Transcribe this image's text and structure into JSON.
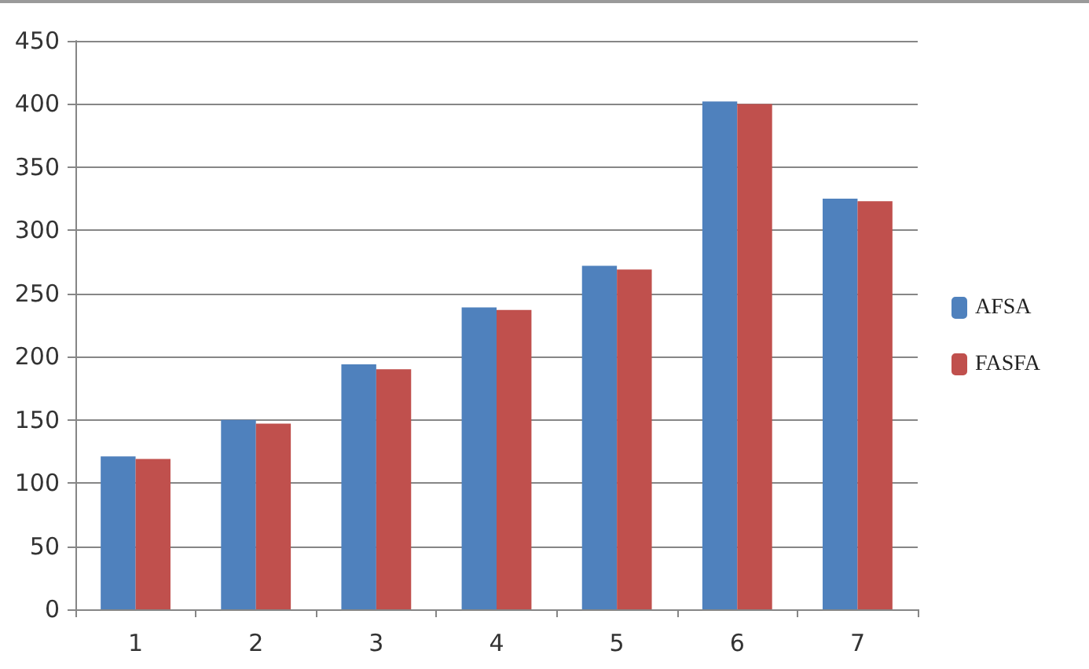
{
  "chart_data": {
    "type": "bar",
    "categories": [
      "1",
      "2",
      "3",
      "4",
      "5",
      "6",
      "7"
    ],
    "series": [
      {
        "name": "AFSA",
        "color": "#4f81bd",
        "values": [
          121,
          150,
          194,
          239,
          272,
          402,
          325
        ]
      },
      {
        "name": "FASFA",
        "color": "#c0504d",
        "values": [
          119,
          147,
          190,
          237,
          269,
          400,
          323
        ]
      }
    ],
    "ylim": [
      0,
      450
    ],
    "yticks": [
      0,
      50,
      100,
      150,
      200,
      250,
      300,
      350,
      400,
      450
    ],
    "grid": "y",
    "legend": "right"
  }
}
